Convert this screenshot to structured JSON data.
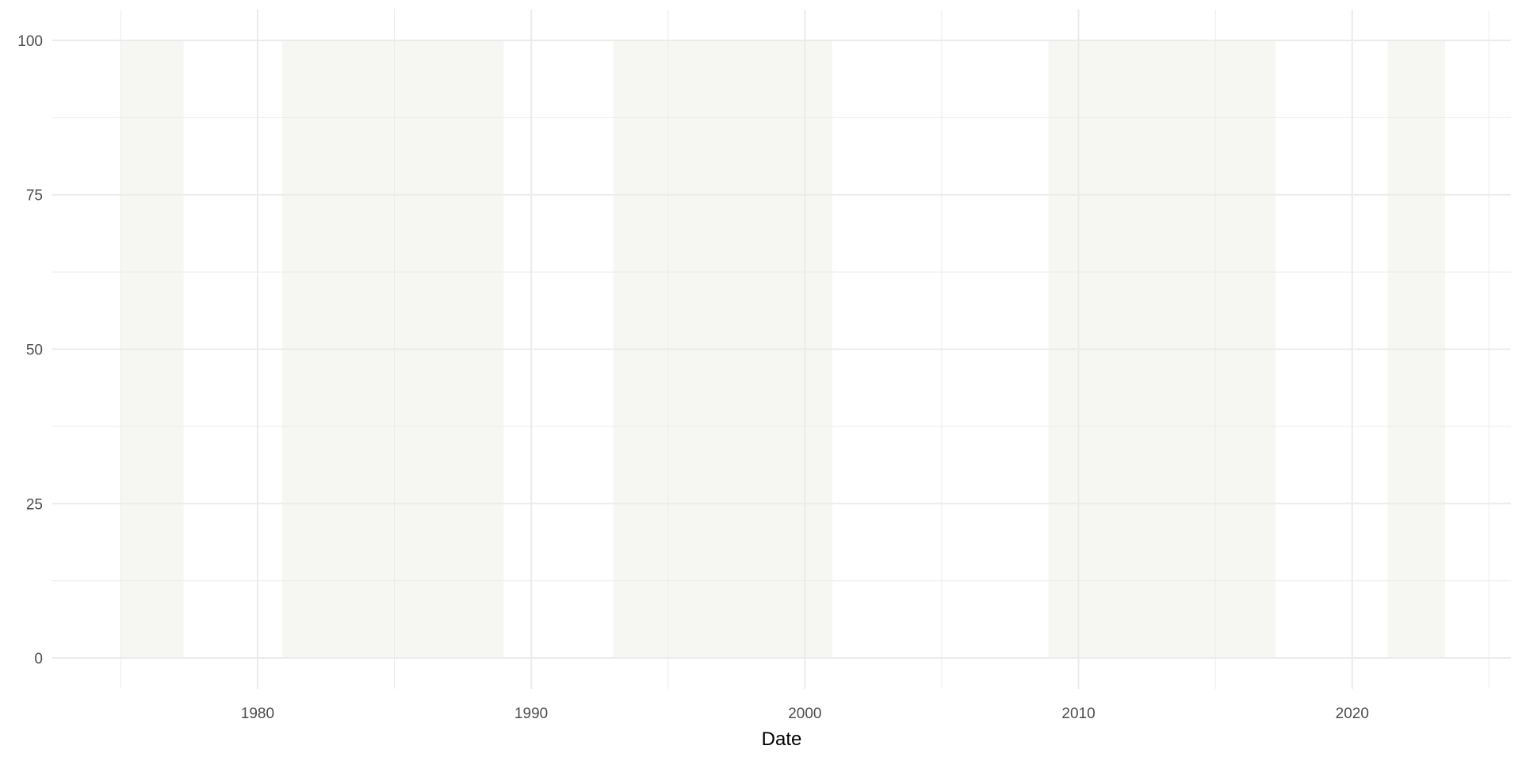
{
  "chart_data": {
    "type": "area",
    "title": "",
    "xlabel": "Date",
    "ylabel": "",
    "xlim": [
      1972.5,
      2025.8
    ],
    "ylim": [
      -5,
      105
    ],
    "x_ticks": [
      1980,
      1990,
      2000,
      2010,
      2020
    ],
    "x_tick_labels": [
      "1980",
      "1990",
      "2000",
      "2010",
      "2020"
    ],
    "x_minor_ticks": [
      1975,
      1985,
      1995,
      2005,
      2015,
      2025
    ],
    "y_ticks": [
      0,
      25,
      50,
      75,
      100
    ],
    "y_tick_labels": [
      "0",
      "25",
      "50",
      "75",
      "100"
    ],
    "y_minor_ticks": [
      12.5,
      37.5,
      62.5,
      87.5
    ],
    "grid": true,
    "legend": "none",
    "shaded_periods": [
      {
        "start": 1975.0,
        "end": 1977.3,
        "value": 100
      },
      {
        "start": 1980.9,
        "end": 1989.0,
        "value": 100
      },
      {
        "start": 1993.0,
        "end": 2001.0,
        "value": 100
      },
      {
        "start": 2008.9,
        "end": 2017.2,
        "value": 100
      },
      {
        "start": 2021.3,
        "end": 2023.4,
        "value": 100
      }
    ],
    "colors": {
      "band": "#f6f7f2",
      "grid": "#ebebeb",
      "tick_text": "#4d4d4d"
    }
  }
}
